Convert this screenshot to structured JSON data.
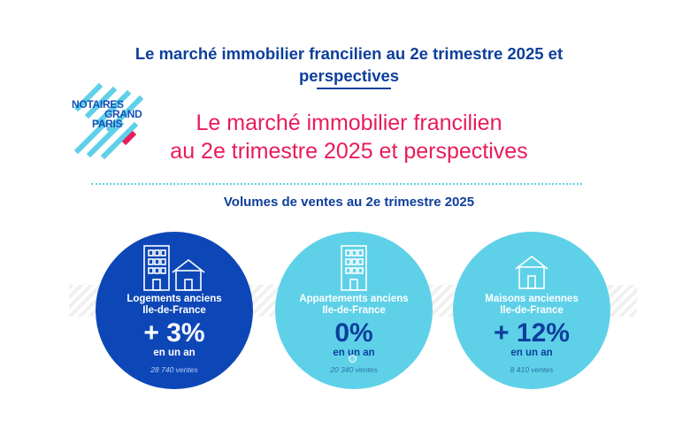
{
  "page": {
    "title_line1": "Le marché immobilier francilien au 2e trimestre 2025 et",
    "title_line2": "perspectives"
  },
  "logo": {
    "line1": "NOTAIRES",
    "line2": "GRAND",
    "line3": "PARIS"
  },
  "hero": {
    "line1": "Le marché immobilier francilien",
    "line2": "au 2e trimestre 2025 et perspectives"
  },
  "section": {
    "subtitle": "Volumes de ventes au 2e trimestre 2025"
  },
  "stats": [
    {
      "label_line1": "Logements anciens",
      "label_line2": "Ile-de-France",
      "value": "+ 3%",
      "period": "en un an",
      "sales": "28 740 ventes",
      "icon": "buildings-house-icon"
    },
    {
      "label_line1": "Appartements anciens",
      "label_line2": "Ile-de-France",
      "value": "0%",
      "period": "en un an",
      "sales": "20 340 ventes",
      "icon": "apartment-building-icon"
    },
    {
      "label_line1": "Maisons anciennes",
      "label_line2": "Ile-de-France",
      "value": "+ 12%",
      "period": "en un an",
      "sales": "8 410 ventes",
      "icon": "house-icon"
    }
  ],
  "colors": {
    "navy": "#0d3f9c",
    "pink": "#e81c5b",
    "dark_blue": "#0d47b7",
    "cyan": "#5ed1e8"
  }
}
